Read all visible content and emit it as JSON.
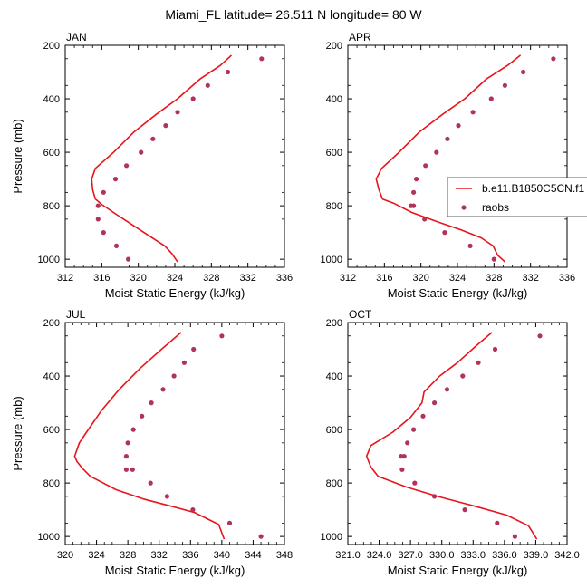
{
  "title": "Miami_FL  latitude= 26.511 N longitude= 80 W",
  "legend": {
    "model_label": "b.e11.B1850C5CN.f1",
    "obs_label": "raobs",
    "model_color": "#e8141b",
    "obs_color": "#b0335a"
  },
  "chart_data": [
    {
      "type": "line",
      "panel": "JAN",
      "xlabel": "Moist Static Energy (kJ/kg)",
      "ylabel": "Pressure (mb)",
      "xlim": [
        312,
        336
      ],
      "ylim": [
        200,
        1030
      ],
      "y_reversed": true,
      "xticks": [
        "312",
        "316",
        "320",
        "324",
        "328",
        "332",
        "336"
      ],
      "xtick_values": [
        312,
        316,
        320,
        324,
        328,
        332,
        336
      ],
      "yticks": [
        "200",
        "400",
        "600",
        "800",
        "1000"
      ],
      "ytick_values": [
        200,
        400,
        600,
        800,
        1000
      ],
      "series": [
        {
          "name": "b.e11.B1850C5CN.f1",
          "kind": "line",
          "x": [
            330.2,
            329.0,
            326.8,
            324.3,
            321.9,
            319.5,
            317.3,
            315.3,
            314.9,
            315.0,
            315.3,
            316.0,
            317.5,
            319.5,
            321.3,
            322.9,
            323.7,
            324.3
          ],
          "y": [
            237,
            275,
            325,
            400,
            460,
            525,
            600,
            660,
            700,
            740,
            775,
            795,
            830,
            875,
            915,
            950,
            980,
            1010
          ]
        },
        {
          "name": "raobs",
          "kind": "scatter",
          "x": [
            333.5,
            329.8,
            327.6,
            326.0,
            324.3,
            323.0,
            321.6,
            320.3,
            318.7,
            317.5,
            316.2,
            315.6,
            315.6,
            316.2,
            317.6,
            318.9
          ],
          "y": [
            250,
            300,
            350,
            400,
            450,
            500,
            550,
            600,
            650,
            700,
            750,
            800,
            850,
            900,
            950,
            1000
          ]
        }
      ]
    },
    {
      "type": "line",
      "panel": "APR",
      "xlabel": "Moist Static Energy (kJ/kg)",
      "ylabel": "",
      "xlim": [
        312,
        336
      ],
      "ylim": [
        200,
        1030
      ],
      "y_reversed": true,
      "xticks": [
        "312",
        "316",
        "320",
        "324",
        "328",
        "332",
        "336"
      ],
      "xtick_values": [
        312,
        316,
        320,
        324,
        328,
        332,
        336
      ],
      "yticks": [
        "200",
        "400",
        "600",
        "800",
        "1000"
      ],
      "ytick_values": [
        200,
        400,
        600,
        800,
        1000
      ],
      "series": [
        {
          "name": "b.e11.B1850C5CN.f1",
          "kind": "line",
          "x": [
            330.9,
            329.5,
            327.2,
            324.8,
            322.3,
            319.8,
            317.6,
            315.7,
            315.1,
            315.4,
            315.8,
            317.0,
            319.0,
            321.8,
            324.4,
            326.6,
            327.9,
            328.4,
            329.2
          ],
          "y": [
            237,
            275,
            325,
            400,
            460,
            525,
            600,
            660,
            700,
            740,
            775,
            790,
            825,
            860,
            890,
            920,
            950,
            985,
            1010
          ]
        },
        {
          "name": "raobs",
          "kind": "scatter",
          "x": [
            334.5,
            331.2,
            329.2,
            327.7,
            325.7,
            324.1,
            322.9,
            321.7,
            320.5,
            319.5,
            319.2,
            318.9,
            319.2,
            320.4,
            322.6,
            325.4,
            328.0
          ],
          "y": [
            250,
            300,
            350,
            400,
            450,
            500,
            550,
            600,
            650,
            700,
            750,
            800,
            800,
            850,
            900,
            950,
            1000
          ]
        }
      ]
    },
    {
      "type": "line",
      "panel": "JUL",
      "xlabel": "Moist Static Energy (kJ/kg)",
      "ylabel": "Pressure (mb)",
      "xlim": [
        320,
        348
      ],
      "ylim": [
        200,
        1030
      ],
      "y_reversed": true,
      "xticks": [
        "320",
        "324",
        "328",
        "332",
        "336",
        "340",
        "344",
        "348"
      ],
      "xtick_values": [
        320,
        324,
        328,
        332,
        336,
        340,
        344,
        348
      ],
      "yticks": [
        "200",
        "400",
        "600",
        "800",
        "1000"
      ],
      "ytick_values": [
        200,
        400,
        600,
        800,
        1000
      ],
      "series": [
        {
          "name": "b.e11.B1850C5CN.f1",
          "kind": "line",
          "x": [
            334.8,
            332.3,
            329.6,
            326.9,
            324.6,
            322.6,
            321.8,
            321.2,
            321.5,
            322.2,
            323.2,
            326.5,
            330.0,
            333.3,
            336.5,
            339.6,
            340.3
          ],
          "y": [
            237,
            300,
            370,
            450,
            530,
            615,
            650,
            700,
            720,
            745,
            775,
            825,
            860,
            885,
            910,
            955,
            1010
          ]
        },
        {
          "name": "raobs",
          "kind": "scatter",
          "x": [
            340.0,
            336.4,
            335.2,
            333.9,
            332.5,
            331.0,
            329.8,
            328.7,
            328.0,
            327.8,
            327.8,
            328.6,
            330.9,
            333.0,
            336.3,
            341.0,
            345.0
          ],
          "y": [
            250,
            300,
            350,
            400,
            450,
            500,
            550,
            600,
            650,
            700,
            750,
            750,
            800,
            850,
            900,
            950,
            1000
          ]
        }
      ]
    },
    {
      "type": "line",
      "panel": "OCT",
      "xlabel": "Moist Static Energy (kJ/kg)",
      "ylabel": "",
      "xlim": [
        321,
        342
      ],
      "ylim": [
        200,
        1030
      ],
      "y_reversed": true,
      "xticks": [
        "321.0",
        "324.0",
        "327.0",
        "330.0",
        "333.0",
        "336.0",
        "339.0",
        "342.0"
      ],
      "xtick_values": [
        321,
        324,
        327,
        330,
        333,
        336,
        339,
        342
      ],
      "yticks": [
        "200",
        "400",
        "600",
        "800",
        "1000"
      ],
      "ytick_values": [
        200,
        400,
        600,
        800,
        1000
      ],
      "series": [
        {
          "name": "b.e11.B1850C5CN.f1",
          "kind": "line",
          "x": [
            334.8,
            333.2,
            331.5,
            329.8,
            328.3,
            328.1,
            327.0,
            325.3,
            323.2,
            322.8,
            323.2,
            323.9,
            326.6,
            329.6,
            333.0,
            336.2,
            338.3,
            339.1
          ],
          "y": [
            237,
            290,
            350,
            400,
            460,
            500,
            555,
            610,
            660,
            700,
            740,
            775,
            815,
            850,
            885,
            920,
            960,
            1010
          ]
        },
        {
          "name": "raobs",
          "kind": "scatter",
          "x": [
            339.4,
            335.1,
            333.5,
            332.0,
            330.5,
            329.3,
            328.2,
            327.3,
            326.7,
            326.4,
            326.1,
            326.2,
            327.4,
            329.3,
            332.2,
            335.3,
            337.0
          ],
          "y": [
            250,
            300,
            350,
            400,
            450,
            500,
            550,
            600,
            650,
            700,
            700,
            750,
            800,
            850,
            900,
            950,
            1000
          ]
        }
      ]
    }
  ]
}
